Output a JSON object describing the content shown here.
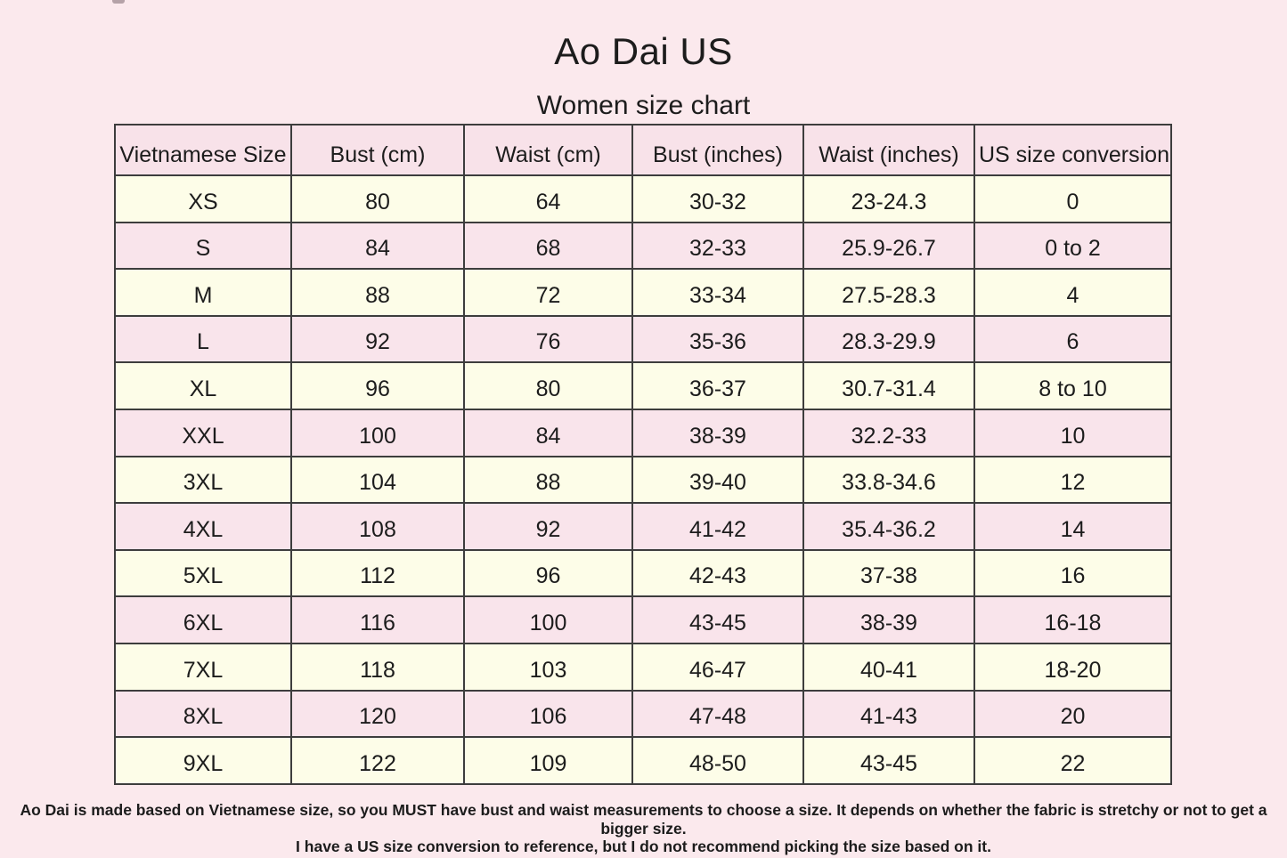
{
  "page": {
    "title": "Ao Dai US",
    "subtitle": "Women size chart",
    "footnotes": [
      "Ao Dai is made based on Vietnamese size, so you MUST have bust and waist measurements to choose a size. It depends on whether the fabric is stretchy or not to get a bigger size.",
      "I have a US size conversion to reference, but I do not recommend picking the size based on it."
    ]
  },
  "size_chart": {
    "columns": [
      "Vietnamese Size",
      "Bust (cm)",
      "Waist (cm)",
      "Bust (inches)",
      "Waist (inches)",
      "US size conversion"
    ],
    "rows": [
      [
        "XS",
        "80",
        "64",
        "30-32",
        "23-24.3",
        "0"
      ],
      [
        "S",
        "84",
        "68",
        "32-33",
        "25.9-26.7",
        "0 to 2"
      ],
      [
        "M",
        "88",
        "72",
        "33-34",
        "27.5-28.3",
        "4"
      ],
      [
        "L",
        "92",
        "76",
        "35-36",
        "28.3-29.9",
        "6"
      ],
      [
        "XL",
        "96",
        "80",
        "36-37",
        "30.7-31.4",
        "8 to 10"
      ],
      [
        "XXL",
        "100",
        "84",
        "38-39",
        "32.2-33",
        "10"
      ],
      [
        "3XL",
        "104",
        "88",
        "39-40",
        "33.8-34.6",
        "12"
      ],
      [
        "4XL",
        "108",
        "92",
        "41-42",
        "35.4-36.2",
        "14"
      ],
      [
        "5XL",
        "112",
        "96",
        "42-43",
        "37-38",
        "16"
      ],
      [
        "6XL",
        "116",
        "100",
        "43-45",
        "38-39",
        "16-18"
      ],
      [
        "7XL",
        "118",
        "103",
        "46-47",
        "40-41",
        "18-20"
      ],
      [
        "8XL",
        "120",
        "106",
        "47-48",
        "41-43",
        "20"
      ],
      [
        "9XL",
        "122",
        "109",
        "48-50",
        "43-45",
        "22"
      ]
    ]
  },
  "colors": {
    "page_background": "#fbe9ed",
    "row_yellow": "#fdfde8",
    "row_pink": "#f9e4eb",
    "header_background": "#f8e2e9",
    "border": "#3d3d3d",
    "text": "#1c1c1c"
  }
}
